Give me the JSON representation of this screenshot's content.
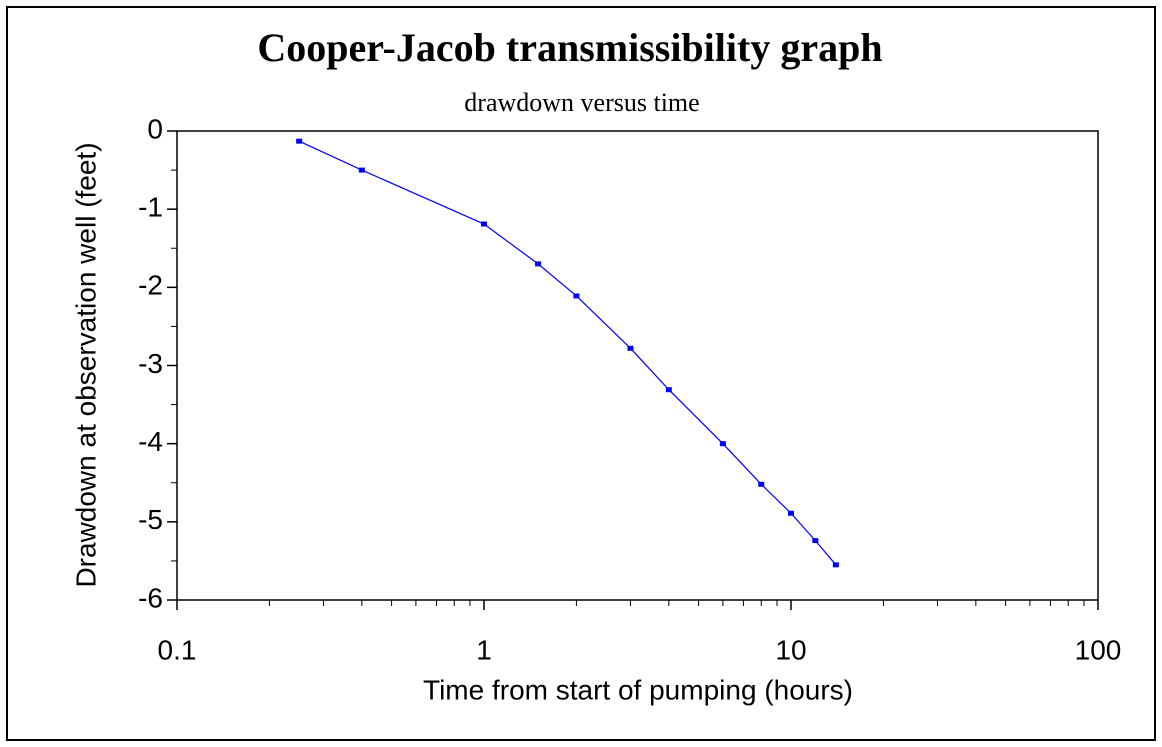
{
  "chart_data": {
    "type": "line",
    "title": "Cooper-Jacob transmissibility graph",
    "subtitle": "drawdown versus time",
    "xlabel": "Time from start of pumping (hours)",
    "ylabel": "Drawdown at observation well (feet)",
    "x": [
      0.25,
      0.4,
      1,
      1.5,
      2,
      3,
      4,
      6,
      8,
      10,
      12,
      14
    ],
    "series": [
      {
        "name": "drawdown",
        "color": "#0000ff",
        "values": [
          -0.13,
          -0.5,
          -1.19,
          -1.7,
          -2.11,
          -2.78,
          -3.31,
          -4.0,
          -4.52,
          -4.89,
          -5.24,
          -5.55
        ]
      }
    ],
    "xscale": "log",
    "xlim": [
      0.1,
      100
    ],
    "xticks": [
      0.1,
      1,
      10,
      100
    ],
    "ylim": [
      -6,
      0
    ],
    "yticks": [
      0,
      -1,
      -2,
      -3,
      -4,
      -5,
      -6
    ],
    "grid": false
  }
}
